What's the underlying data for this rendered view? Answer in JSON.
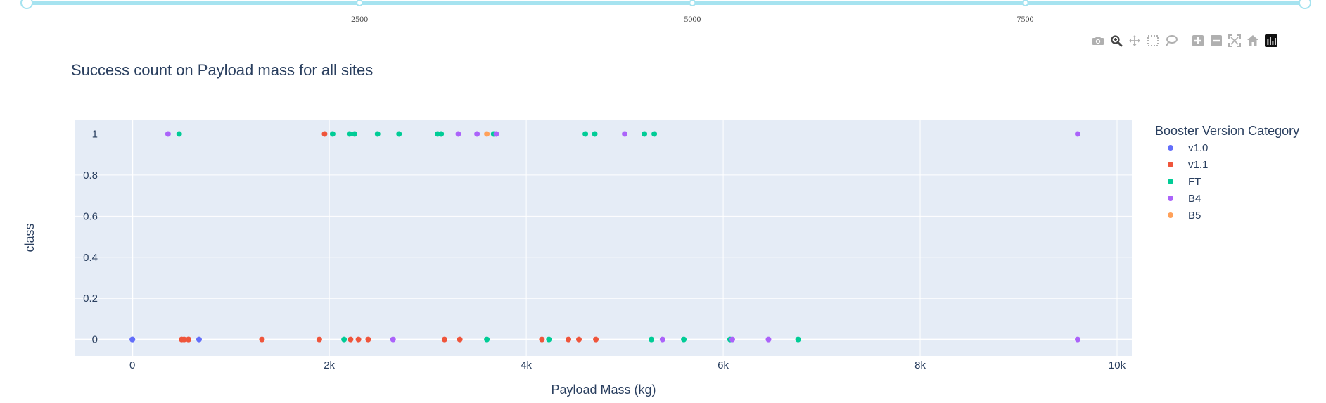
{
  "slider": {
    "min": 0,
    "max": 9600,
    "value": [
      0,
      9600
    ],
    "ticks": [
      {
        "value": 2500,
        "label": "2500"
      },
      {
        "value": 5000,
        "label": "5000"
      },
      {
        "value": 7500,
        "label": "7500"
      }
    ],
    "color": "#a6e3f0"
  },
  "modebar": {
    "buttons": [
      {
        "name": "camera-icon",
        "active": false
      },
      {
        "name": "zoom-icon",
        "active": true
      },
      {
        "name": "pan-icon",
        "active": false
      },
      {
        "name": "box-select-icon",
        "active": false
      },
      {
        "name": "lasso-select-icon",
        "active": false
      },
      {
        "name": "zoom-in-icon",
        "active": false
      },
      {
        "name": "zoom-out-icon",
        "active": false
      },
      {
        "name": "autoscale-icon",
        "active": false
      },
      {
        "name": "reset-axes-icon",
        "active": false
      },
      {
        "name": "plotly-logo-icon",
        "active": false
      }
    ]
  },
  "chart_data": {
    "type": "scatter",
    "title": "Success count on Payload mass for all sites",
    "xlabel": "Payload Mass (kg)",
    "ylabel": "class",
    "xlim": [
      -580,
      10150
    ],
    "ylim": [
      -0.08,
      1.07
    ],
    "xticks": [
      {
        "value": 0,
        "label": "0"
      },
      {
        "value": 2000,
        "label": "2k"
      },
      {
        "value": 4000,
        "label": "4k"
      },
      {
        "value": 6000,
        "label": "6k"
      },
      {
        "value": 8000,
        "label": "8k"
      },
      {
        "value": 10000,
        "label": "10k"
      }
    ],
    "yticks": [
      {
        "value": 0,
        "label": "0"
      },
      {
        "value": 0.2,
        "label": "0.2"
      },
      {
        "value": 0.4,
        "label": "0.4"
      },
      {
        "value": 0.6,
        "label": "0.6"
      },
      {
        "value": 0.8,
        "label": "0.8"
      },
      {
        "value": 1,
        "label": "1"
      }
    ],
    "grid": true,
    "plot_bgcolor": "#e5ecf6",
    "legend_title": "Booster Version Category",
    "legend_position": "right",
    "series": [
      {
        "name": "v1.0",
        "color": "#636efa",
        "points": [
          [
            0,
            0
          ],
          [
            0,
            0
          ],
          [
            677,
            0
          ]
        ]
      },
      {
        "name": "v1.1",
        "color": "#ef553b",
        "points": [
          [
            500,
            0
          ],
          [
            525,
            0
          ],
          [
            570,
            0
          ],
          [
            570,
            0
          ],
          [
            1316,
            0
          ],
          [
            1898,
            0
          ],
          [
            1952,
            1
          ],
          [
            2216,
            0
          ],
          [
            2296,
            0
          ],
          [
            2395,
            0
          ],
          [
            3170,
            0
          ],
          [
            3325,
            0
          ],
          [
            4159,
            0
          ],
          [
            4428,
            0
          ],
          [
            4535,
            0
          ],
          [
            4707,
            0
          ]
        ]
      },
      {
        "name": "FT",
        "color": "#00cc96",
        "points": [
          [
            475,
            1
          ],
          [
            2034,
            1
          ],
          [
            2150,
            0
          ],
          [
            2205,
            1
          ],
          [
            2257,
            1
          ],
          [
            2490,
            1
          ],
          [
            2708,
            1
          ],
          [
            3100,
            1
          ],
          [
            3136,
            1
          ],
          [
            3600,
            0
          ],
          [
            3669,
            1
          ],
          [
            4230,
            0
          ],
          [
            4600,
            1
          ],
          [
            4696,
            1
          ],
          [
            5200,
            1
          ],
          [
            5271,
            0
          ],
          [
            5300,
            1
          ],
          [
            5600,
            0
          ],
          [
            6070,
            0
          ],
          [
            6761,
            0
          ]
        ]
      },
      {
        "name": "B4",
        "color": "#ab63fa",
        "points": [
          [
            362,
            1
          ],
          [
            2647,
            0
          ],
          [
            3310,
            1
          ],
          [
            3500,
            1
          ],
          [
            3696,
            1
          ],
          [
            5000,
            1
          ],
          [
            5384,
            0
          ],
          [
            6092,
            0
          ],
          [
            6460,
            0
          ],
          [
            9600,
            1
          ],
          [
            9600,
            0
          ]
        ]
      },
      {
        "name": "B5",
        "color": "#ffa15a",
        "points": [
          [
            3600,
            1
          ]
        ]
      }
    ]
  }
}
